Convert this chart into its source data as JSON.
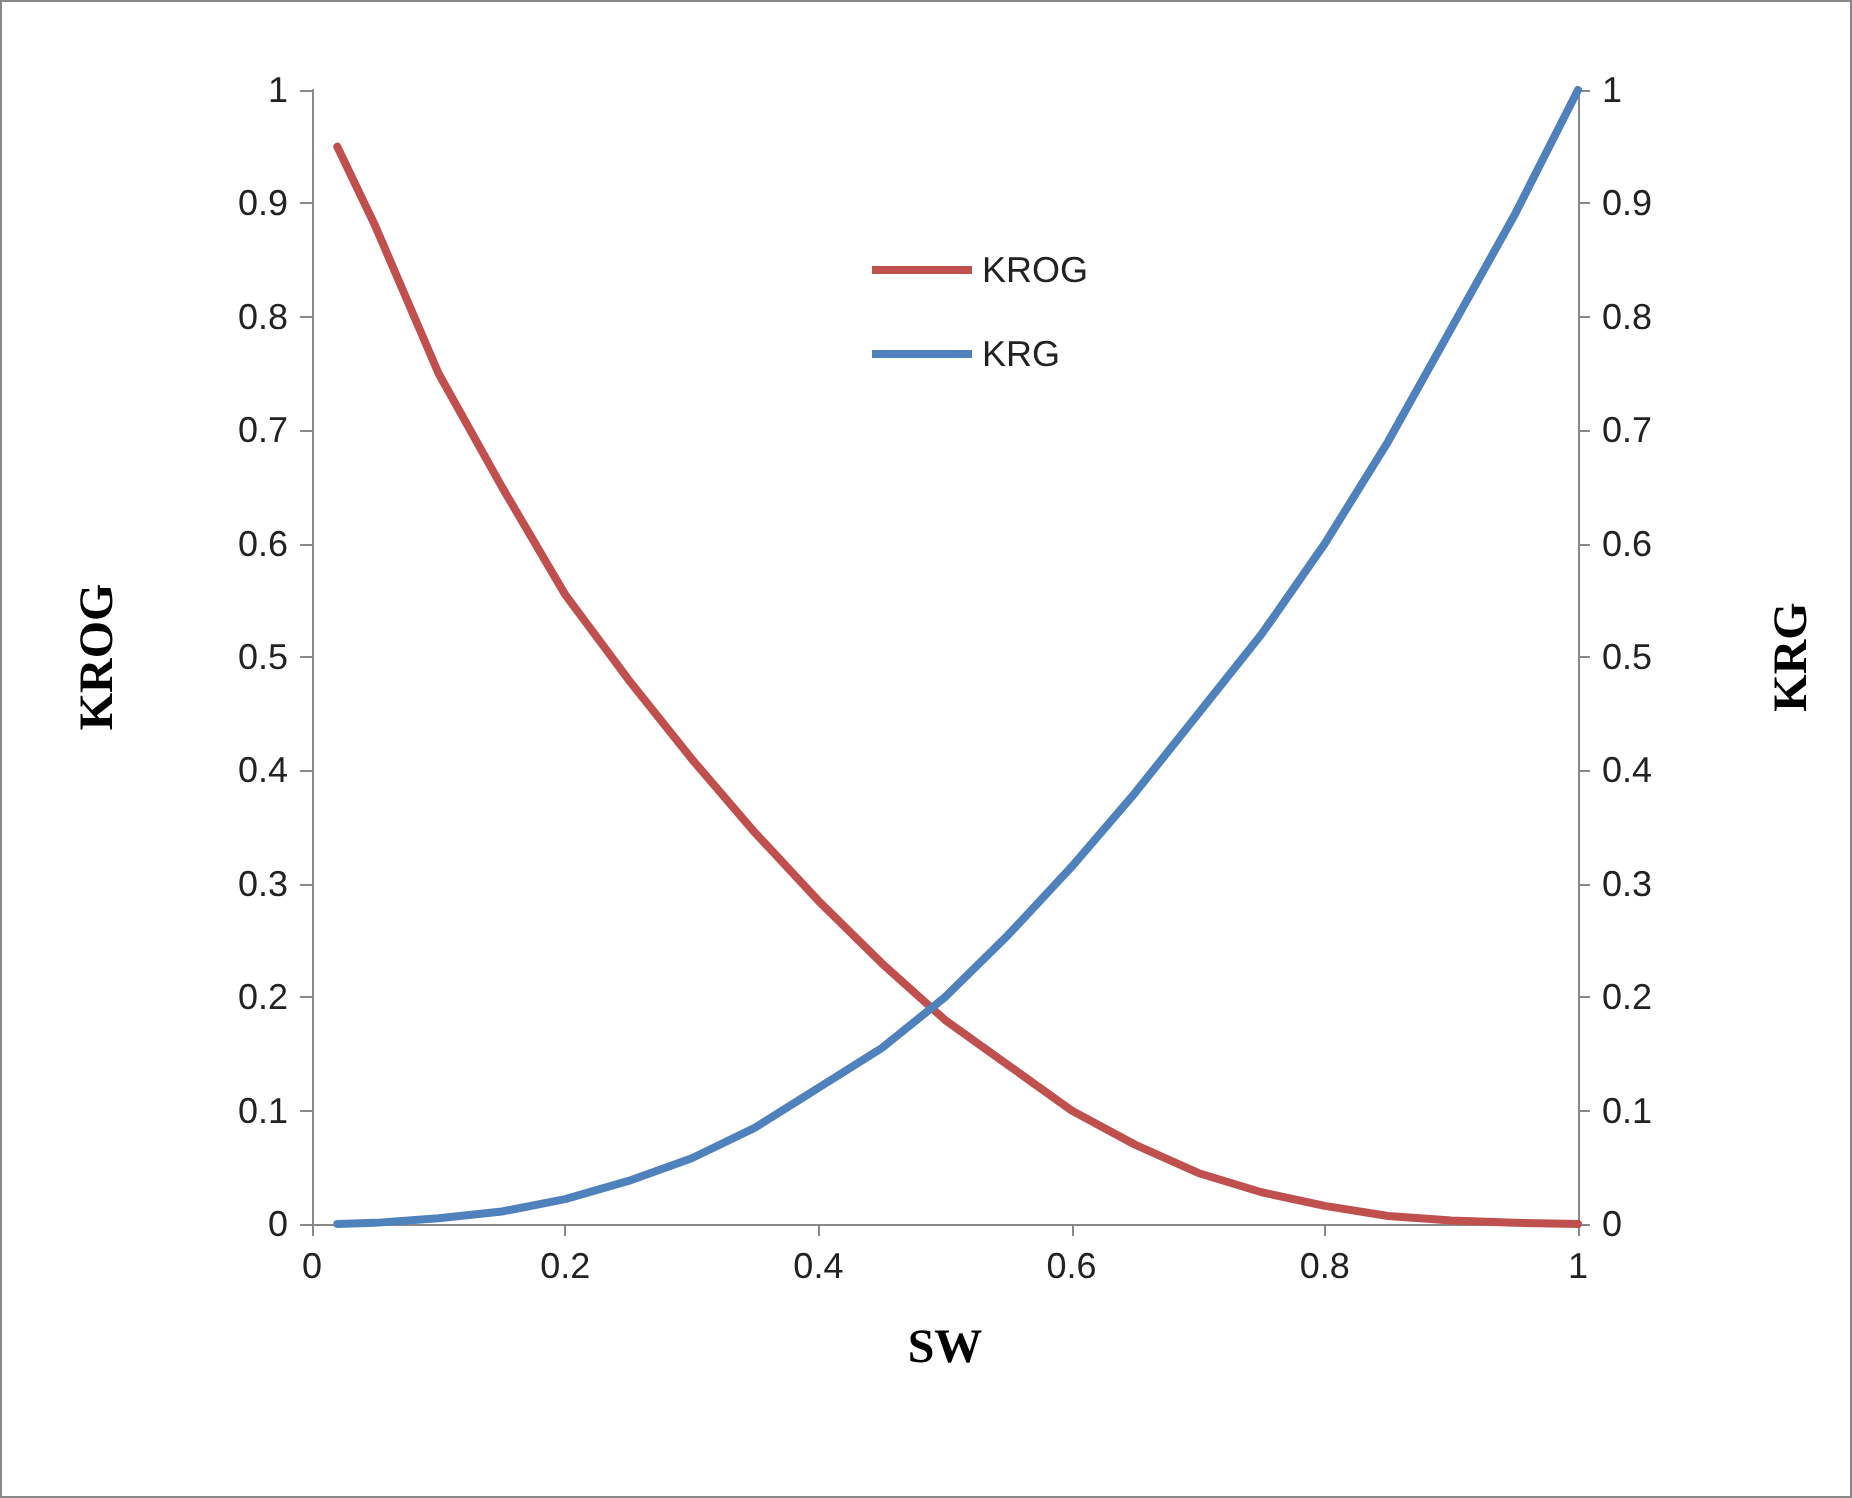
{
  "chart_data": {
    "type": "line",
    "xlabel": "SW",
    "ylabel": "KROG",
    "y2label": "KRG",
    "x": [
      0.02,
      0.05,
      0.1,
      0.15,
      0.2,
      0.25,
      0.3,
      0.35,
      0.4,
      0.45,
      0.5,
      0.55,
      0.6,
      0.65,
      0.7,
      0.75,
      0.8,
      0.85,
      0.9,
      0.95,
      1
    ],
    "series": [
      {
        "name": "KROG",
        "color": "#c0504d",
        "values": [
          0.95,
          0.88,
          0.75,
          0.65,
          0.555,
          0.48,
          0.41,
          0.345,
          0.285,
          0.23,
          0.18,
          0.14,
          0.1,
          0.07,
          0.045,
          0.028,
          0.016,
          0.007,
          0.003,
          0.001,
          0
        ]
      },
      {
        "name": "KRG",
        "color": "#4f81bd",
        "axis": "y2",
        "values": [
          0,
          0.001,
          0.005,
          0.011,
          0.022,
          0.038,
          0.058,
          0.085,
          0.12,
          0.155,
          0.2,
          0.255,
          0.315,
          0.38,
          0.45,
          0.52,
          0.6,
          0.69,
          0.79,
          0.89,
          1
        ]
      }
    ],
    "xlim": [
      0,
      1
    ],
    "xticks": [
      0,
      0.2,
      0.4,
      0.6,
      0.8,
      1
    ],
    "ylim": [
      0,
      1
    ],
    "yticks": [
      0,
      0.1,
      0.2,
      0.3,
      0.4,
      0.5,
      0.6,
      0.7,
      0.8,
      0.9,
      1
    ],
    "y2lim": [
      0,
      1
    ],
    "y2ticks": [
      0,
      0.1,
      0.2,
      0.3,
      0.4,
      0.5,
      0.6,
      0.7,
      0.8,
      0.9,
      1
    ],
    "grid": false,
    "legend": "top",
    "marker": "none",
    "line_style": "solid"
  }
}
